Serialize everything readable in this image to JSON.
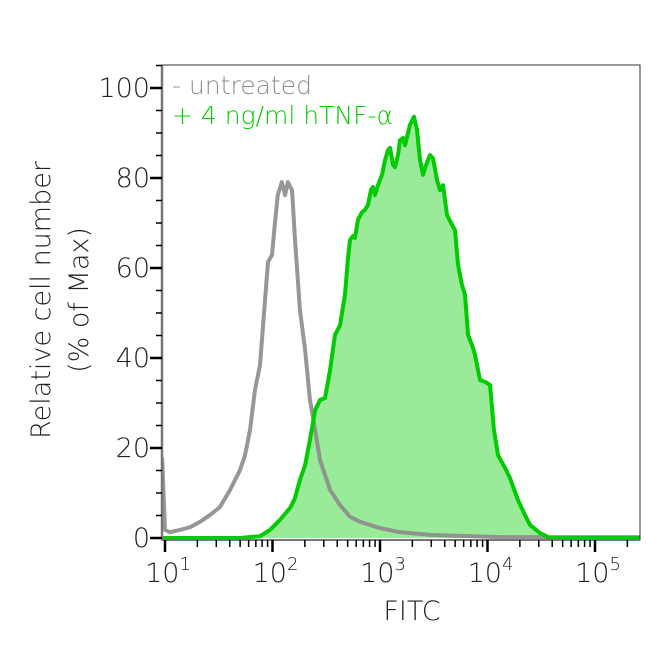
{
  "chart_data": {
    "type": "area",
    "title": "",
    "xlabel": "FITC",
    "ylabel_lines": [
      "Relative cell number",
      "(% of Max)"
    ],
    "x_scale": "log",
    "xlim": [
      9.4,
      262000
    ],
    "ylim": [
      0,
      105
    ],
    "x_ticks": [
      {
        "base": "10",
        "exp": "1",
        "value": 10
      },
      {
        "base": "10",
        "exp": "2",
        "value": 100
      },
      {
        "base": "10",
        "exp": "3",
        "value": 1000
      },
      {
        "base": "10",
        "exp": "4",
        "value": 10000
      },
      {
        "base": "10",
        "exp": "5",
        "value": 100000
      }
    ],
    "y_ticks": [
      "0",
      "20",
      "40",
      "60",
      "80",
      "100"
    ],
    "y_minor_step": 5,
    "grid": false,
    "legend_placement": "top-left",
    "series": [
      {
        "name": "- untreated",
        "color": "#8c8c8c",
        "filled": false,
        "x": [
          9.4,
          10,
          11.1,
          13.8,
          17.1,
          21.2,
          26.2,
          32.5,
          40.3,
          49.9,
          55.5,
          61.8,
          68.7,
          76.5,
          85.2,
          90.8,
          98.9,
          105,
          112,
          122,
          131,
          139,
          152,
          162,
          180,
          201,
          223,
          249,
          277,
          343,
          425,
          526,
          652,
          807,
          1000,
          1535,
          2917,
          13060,
          262000
        ],
        "y": [
          17.8,
          1.8,
          1.3,
          1.8,
          2.4,
          3.6,
          5.1,
          6.9,
          10.7,
          15.1,
          18.4,
          24,
          32.9,
          38.4,
          52.9,
          61.3,
          62.9,
          69.6,
          76.2,
          79.1,
          76.2,
          79.1,
          77.3,
          66.2,
          50.7,
          41.8,
          30.7,
          24,
          17.3,
          10.7,
          7.3,
          4.7,
          3.6,
          2.9,
          2.2,
          1.3,
          0.7,
          0.2,
          0.2
        ]
      },
      {
        "name": "+ 4 ng/ml hTNF-α",
        "color": "#00cc00",
        "fill": "#99eb99",
        "filled": true,
        "x": [
          9.4,
          49.9,
          76.5,
          94.8,
          117,
          146,
          162,
          180,
          201,
          223,
          249,
          277,
          308,
          343,
          381,
          425,
          472,
          504,
          526,
          561,
          585,
          624,
          680,
          725,
          773,
          824,
          861,
          898,
          958,
          1044,
          1114,
          1187,
          1240,
          1322,
          1380,
          1470,
          1535,
          1637,
          1710,
          1901,
          2071,
          2208,
          2355,
          2512,
          2679,
          2917,
          3111,
          3388,
          3613,
          3854,
          4198,
          4677,
          4988,
          5320,
          5794,
          6180,
          6591,
          7178,
          7656,
          8511,
          9484,
          10550,
          11480,
          12520,
          14550,
          16180,
          19230,
          22340,
          24850,
          30760,
          38110,
          262000
        ],
        "y": [
          0,
          0,
          0.4,
          1.8,
          4,
          6.7,
          8.9,
          12.9,
          16.2,
          21.8,
          28.4,
          30.7,
          31.1,
          37.3,
          45.1,
          47.3,
          54,
          62.2,
          66.2,
          67.1,
          66.7,
          70.7,
          72.4,
          72.9,
          74,
          77.3,
          78,
          76.2,
          78.4,
          80.7,
          84,
          86.2,
          86.7,
          82.9,
          82.4,
          85.1,
          88.4,
          88.9,
          87.3,
          91.8,
          93.6,
          90.7,
          84,
          80.7,
          82.9,
          85.1,
          84.4,
          79.6,
          77.3,
          78.4,
          71.8,
          69.6,
          68.4,
          60.7,
          56.2,
          54,
          45.1,
          42.9,
          40.7,
          35.1,
          34.7,
          34,
          24,
          18.4,
          15.6,
          13.3,
          8.4,
          5.1,
          2.9,
          1.1,
          0,
          0
        ]
      }
    ]
  }
}
